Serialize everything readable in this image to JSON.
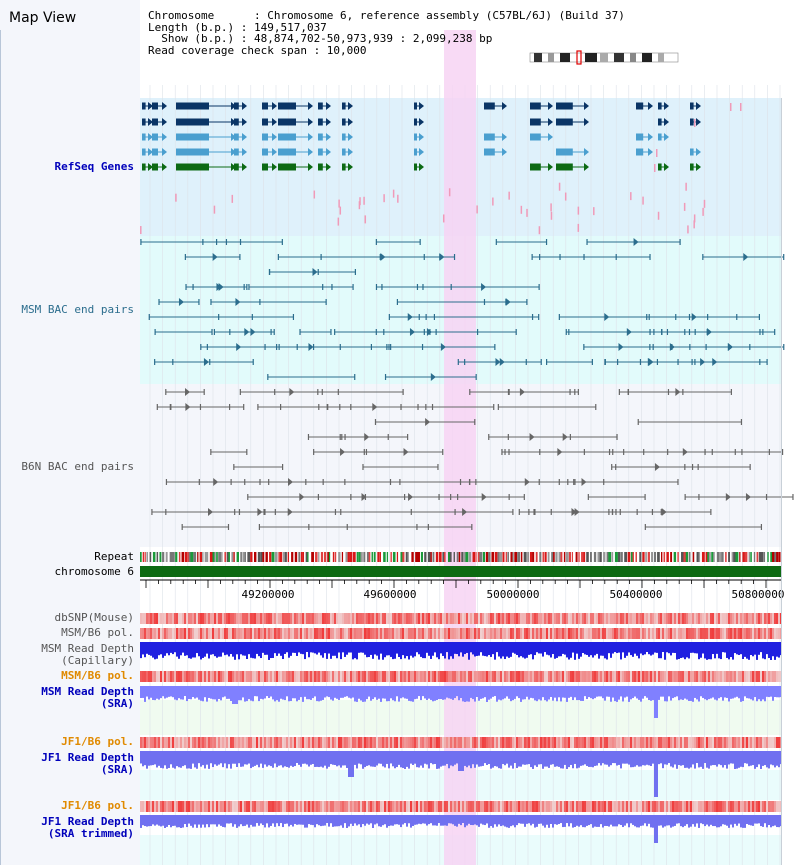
{
  "title": "Map View",
  "info": {
    "chromosome_line": "Chromosome      : Chromosome 6, reference assembly (C57BL/6J) (Build 37)",
    "length_line": "Length (b.p.) : 149,517,037",
    "show_line": "  Show (b.p.) : 48,874,702-50,973,939 : 2,099,238 bp",
    "coverage_line": "Read coverage check span : 10,000"
  },
  "tracks": {
    "refseq": "RefSeq Genes",
    "msm_bac": "MSM BAC end pairs",
    "b6n_bac": "B6N BAC end pairs",
    "repeat": "Repeat",
    "chromosome": "chromosome 6",
    "dbsnp": "dbSNP(Mouse)",
    "msm_b6_pol_1": "MSM/B6 pol.",
    "msm_depth_cap": "MSM Read Depth\n(Capillary)",
    "msm_b6_pol_2": "MSM/B6 pol.",
    "msm_depth_sra": "MSM Read Depth\n(SRA)",
    "jf1_b6_pol_1": "JF1/B6 pol.",
    "jf1_depth_sra": "JF1 Read Depth\n(SRA)",
    "jf1_b6_pol_2": "JF1/B6 pol.",
    "jf1_depth_trim": "JF1 Read Depth\n(SRA trimmed)"
  },
  "axis": {
    "ticks": [
      "49200000",
      "49600000",
      "50000000",
      "50400000",
      "50800000"
    ]
  },
  "colors": {
    "refseq_bg": "#dff1fb",
    "msm_bg": "#e2fbfb",
    "b6n_bg": "#f4f6fb",
    "highlight": "#f7d3f3",
    "gene_dark": "#0a3566",
    "gene_mid": "#4a9fcf",
    "gene_green": "#0c6a14",
    "msm_line": "#2b6d8d",
    "b6n_line": "#666666",
    "chromosome_bar": "#0d6a12",
    "orange_label": "#e08a00",
    "blue_label": "#0000bb",
    "gray_label": "#555555"
  }
}
